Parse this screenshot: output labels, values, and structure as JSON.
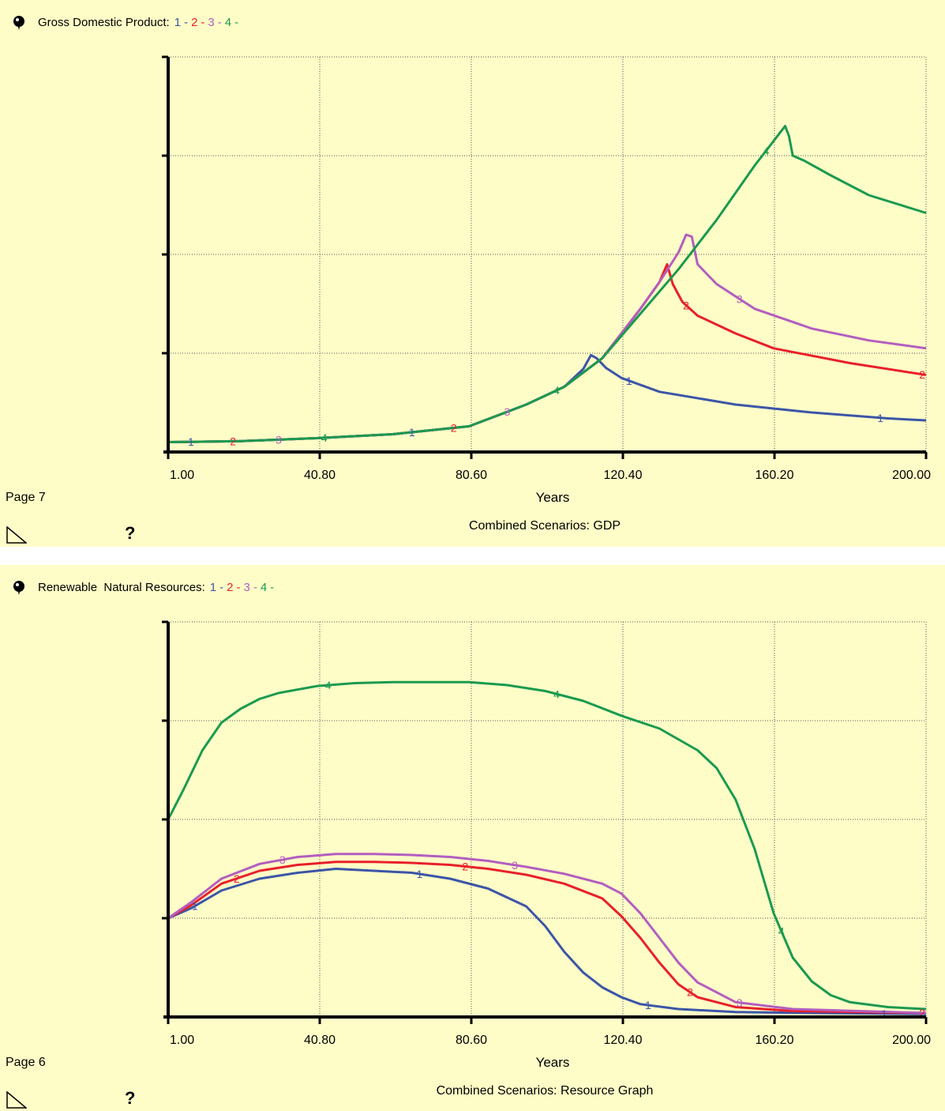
{
  "colors": {
    "background": "#fffdc7",
    "series": {
      "1": "#3b55a8",
      "2": "#e8202a",
      "3": "#b25ec0",
      "4": "#1a9a4f"
    }
  },
  "chart_data": [
    {
      "type": "line",
      "title": "Gross Domestic Product:",
      "legend_labels": [
        "1",
        "2",
        "3",
        "4"
      ],
      "xlabel": "Years",
      "caption": "Combined Scenarios: GDP",
      "page_label": "Page 7",
      "xticks": [
        "1.00",
        "40.80",
        "80.60",
        "120.40",
        "160.20",
        "200.00"
      ],
      "xlim": [
        1,
        200
      ],
      "ylim": [
        0,
        4
      ],
      "grid": true,
      "series": [
        {
          "key": "1",
          "x": [
            1,
            20,
            40,
            60,
            80,
            95,
            105,
            110,
            112,
            113.5,
            116,
            120,
            130,
            150,
            170,
            190,
            200
          ],
          "y": [
            0.1,
            0.11,
            0.14,
            0.18,
            0.26,
            0.48,
            0.66,
            0.84,
            0.98,
            0.95,
            0.85,
            0.75,
            0.61,
            0.48,
            0.4,
            0.34,
            0.32
          ]
        },
        {
          "key": "2",
          "x": [
            1,
            20,
            40,
            60,
            80,
            95,
            105,
            115,
            125,
            130,
            132,
            133.5,
            136,
            140,
            150,
            160,
            180,
            200
          ],
          "y": [
            0.1,
            0.11,
            0.14,
            0.18,
            0.26,
            0.48,
            0.66,
            0.95,
            1.45,
            1.72,
            1.9,
            1.7,
            1.52,
            1.38,
            1.2,
            1.05,
            0.9,
            0.78
          ]
        },
        {
          "key": "3",
          "x": [
            1,
            20,
            40,
            60,
            80,
            95,
            105,
            115,
            125,
            130,
            135,
            137,
            138.5,
            140,
            145,
            155,
            170,
            185,
            200
          ],
          "y": [
            0.1,
            0.11,
            0.14,
            0.18,
            0.26,
            0.48,
            0.66,
            0.95,
            1.45,
            1.72,
            2.02,
            2.2,
            2.18,
            1.9,
            1.7,
            1.45,
            1.25,
            1.13,
            1.05
          ]
        },
        {
          "key": "4",
          "x": [
            1,
            20,
            40,
            60,
            80,
            95,
            105,
            115,
            125,
            135,
            145,
            155,
            160,
            163,
            164,
            165,
            168,
            175,
            185,
            200
          ],
          "y": [
            0.1,
            0.11,
            0.14,
            0.18,
            0.26,
            0.48,
            0.66,
            0.95,
            1.4,
            1.85,
            2.35,
            2.9,
            3.15,
            3.3,
            3.2,
            3.0,
            2.95,
            2.8,
            2.6,
            2.42
          ]
        }
      ],
      "markers": [
        {
          "s": "1",
          "x": [
            7,
            65,
            122,
            188
          ]
        },
        {
          "s": "2",
          "x": [
            18,
            76,
            137,
            199
          ]
        },
        {
          "s": "3",
          "x": [
            30,
            90,
            151
          ]
        },
        {
          "s": "4",
          "x": [
            42,
            103,
            158
          ]
        }
      ]
    },
    {
      "type": "line",
      "title": "Renewable  Natural Resources:",
      "legend_labels": [
        "1",
        "2",
        "3",
        "4"
      ],
      "xlabel": "Years",
      "caption": "Combined Scenarios: Resource Graph",
      "page_label": "Page 6",
      "xticks": [
        "1.00",
        "40.80",
        "80.60",
        "120.40",
        "160.20",
        "200.00"
      ],
      "xlim": [
        1,
        200
      ],
      "ylim": [
        0,
        4
      ],
      "grid": true,
      "series": [
        {
          "key": "1",
          "x": [
            1,
            7,
            15,
            25,
            35,
            45,
            55,
            65,
            75,
            85,
            95,
            100,
            105,
            110,
            115,
            120,
            125,
            135,
            150,
            170,
            200
          ],
          "y": [
            1.0,
            1.1,
            1.28,
            1.4,
            1.46,
            1.5,
            1.48,
            1.46,
            1.4,
            1.3,
            1.12,
            0.92,
            0.66,
            0.45,
            0.3,
            0.2,
            0.13,
            0.08,
            0.05,
            0.04,
            0.03
          ]
        },
        {
          "key": "2",
          "x": [
            1,
            7,
            15,
            25,
            35,
            45,
            55,
            65,
            75,
            85,
            95,
            105,
            115,
            120,
            125,
            130,
            135,
            140,
            150,
            165,
            200
          ],
          "y": [
            1.0,
            1.13,
            1.35,
            1.48,
            1.54,
            1.57,
            1.57,
            1.56,
            1.54,
            1.5,
            1.44,
            1.35,
            1.2,
            1.02,
            0.8,
            0.55,
            0.33,
            0.2,
            0.1,
            0.06,
            0.04
          ]
        },
        {
          "key": "3",
          "x": [
            1,
            7,
            15,
            25,
            35,
            45,
            55,
            65,
            75,
            85,
            95,
            105,
            115,
            120,
            125,
            130,
            135,
            140,
            150,
            165,
            200
          ],
          "y": [
            1.0,
            1.16,
            1.4,
            1.55,
            1.62,
            1.65,
            1.65,
            1.64,
            1.62,
            1.58,
            1.52,
            1.45,
            1.35,
            1.25,
            1.05,
            0.8,
            0.55,
            0.35,
            0.15,
            0.08,
            0.04
          ]
        },
        {
          "key": "4",
          "x": [
            1,
            5,
            10,
            15,
            20,
            25,
            30,
            40,
            50,
            60,
            70,
            80,
            90,
            100,
            110,
            120,
            130,
            140,
            145,
            150,
            155,
            160,
            165,
            170,
            175,
            180,
            190,
            200
          ],
          "y": [
            2.0,
            2.3,
            2.7,
            2.98,
            3.12,
            3.22,
            3.28,
            3.35,
            3.38,
            3.39,
            3.39,
            3.39,
            3.36,
            3.3,
            3.2,
            3.05,
            2.92,
            2.7,
            2.52,
            2.2,
            1.7,
            1.05,
            0.6,
            0.36,
            0.22,
            0.15,
            0.1,
            0.08
          ]
        }
      ],
      "markers": [
        {
          "s": "1",
          "x": [
            8,
            67,
            127,
            189
          ]
        },
        {
          "s": "2",
          "x": [
            19,
            79,
            138,
            199
          ]
        },
        {
          "s": "3",
          "x": [
            31,
            92,
            151
          ]
        },
        {
          "s": "4",
          "x": [
            43,
            103,
            162
          ]
        }
      ]
    }
  ]
}
